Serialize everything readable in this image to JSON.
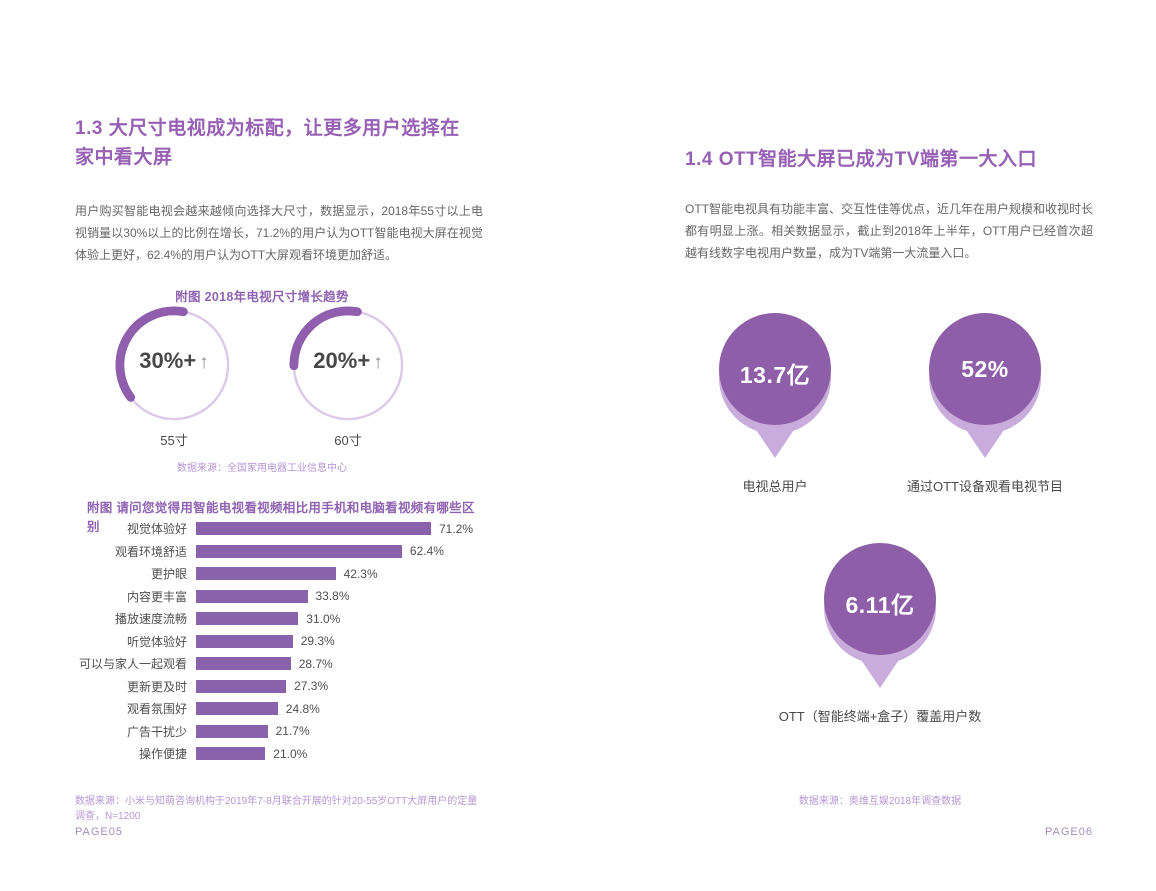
{
  "left_page": {
    "title": "1.3  大尺寸电视成为标配，让更多用户选择在家中看大屏",
    "body": "用户购买智能电视会越来越倾向选择大尺寸，数据显示，2018年55寸以上电视销量以30%以上的比例在增长，71.2%的用户认为OTT智能电视大屏在视觉体验上更好，62.4%的用户认为OTT大屏观看环境更加舒适。",
    "page_number": "PAGE05"
  },
  "right_page": {
    "title": "1.4  OTT智能大屏已成为TV端第一大入口",
    "body": "OTT智能电视具有功能丰富、交互性佳等优点，近几年在用户规模和收视时长都有明显上涨。相关数据显示，截止到2018年上半年，OTT用户已经首次超越有线数字电视用户数量，成为TV端第一大流量入口。",
    "page_number": "PAGE06"
  },
  "colors": {
    "accent_purple": "#8E5FA8",
    "light_purple": "#C9ACDB",
    "heading_purple": "#9760B5",
    "source_purple": "#B795D4"
  },
  "chart_data": [
    {
      "id": "tv-size-growth",
      "type": "donut",
      "title": "附图  2018年电视尺寸增长趋势",
      "categories": [
        "55寸",
        "60寸"
      ],
      "values": [
        "30%+",
        "20%+"
      ],
      "arrow": "↑",
      "arc_fractions": [
        0.38,
        0.28
      ],
      "source": "数据来源：全国家用电器工业信息中心"
    },
    {
      "id": "smart-tv-vs-phone-pc",
      "type": "bar",
      "title": "附图  请问您觉得用智能电视看视频相比用手机和电脑看视频有哪些区别",
      "categories": [
        "视觉体验好",
        "观看环境舒适",
        "更护眼",
        "内容更丰富",
        "播放速度流畅",
        "听觉体验好",
        "可以与家人一起观看",
        "更新更及时",
        "观看氛围好",
        "广告干扰少",
        "操作便捷"
      ],
      "values": [
        71.2,
        62.4,
        42.3,
        33.8,
        31.0,
        29.3,
        28.7,
        27.3,
        24.8,
        21.7,
        21.0
      ],
      "unit": "%",
      "xlim": [
        0,
        80
      ],
      "source": "数据来源：小米与知萌咨询机构于2019年7-8月联合开展的针对20-55岁OTT大屏用户的定量调查，N=1200"
    },
    {
      "id": "ott-entrance",
      "type": "infographic",
      "items": [
        {
          "value": "13.7亿",
          "label": "电视总用户"
        },
        {
          "value": "52%",
          "label": "通过OTT设备观看电视节目"
        },
        {
          "value": "6.11亿",
          "label": "OTT（智能终端+盒子）覆盖用户数"
        }
      ],
      "source": "数据来源：奥维互娱2018年调查数据"
    }
  ]
}
